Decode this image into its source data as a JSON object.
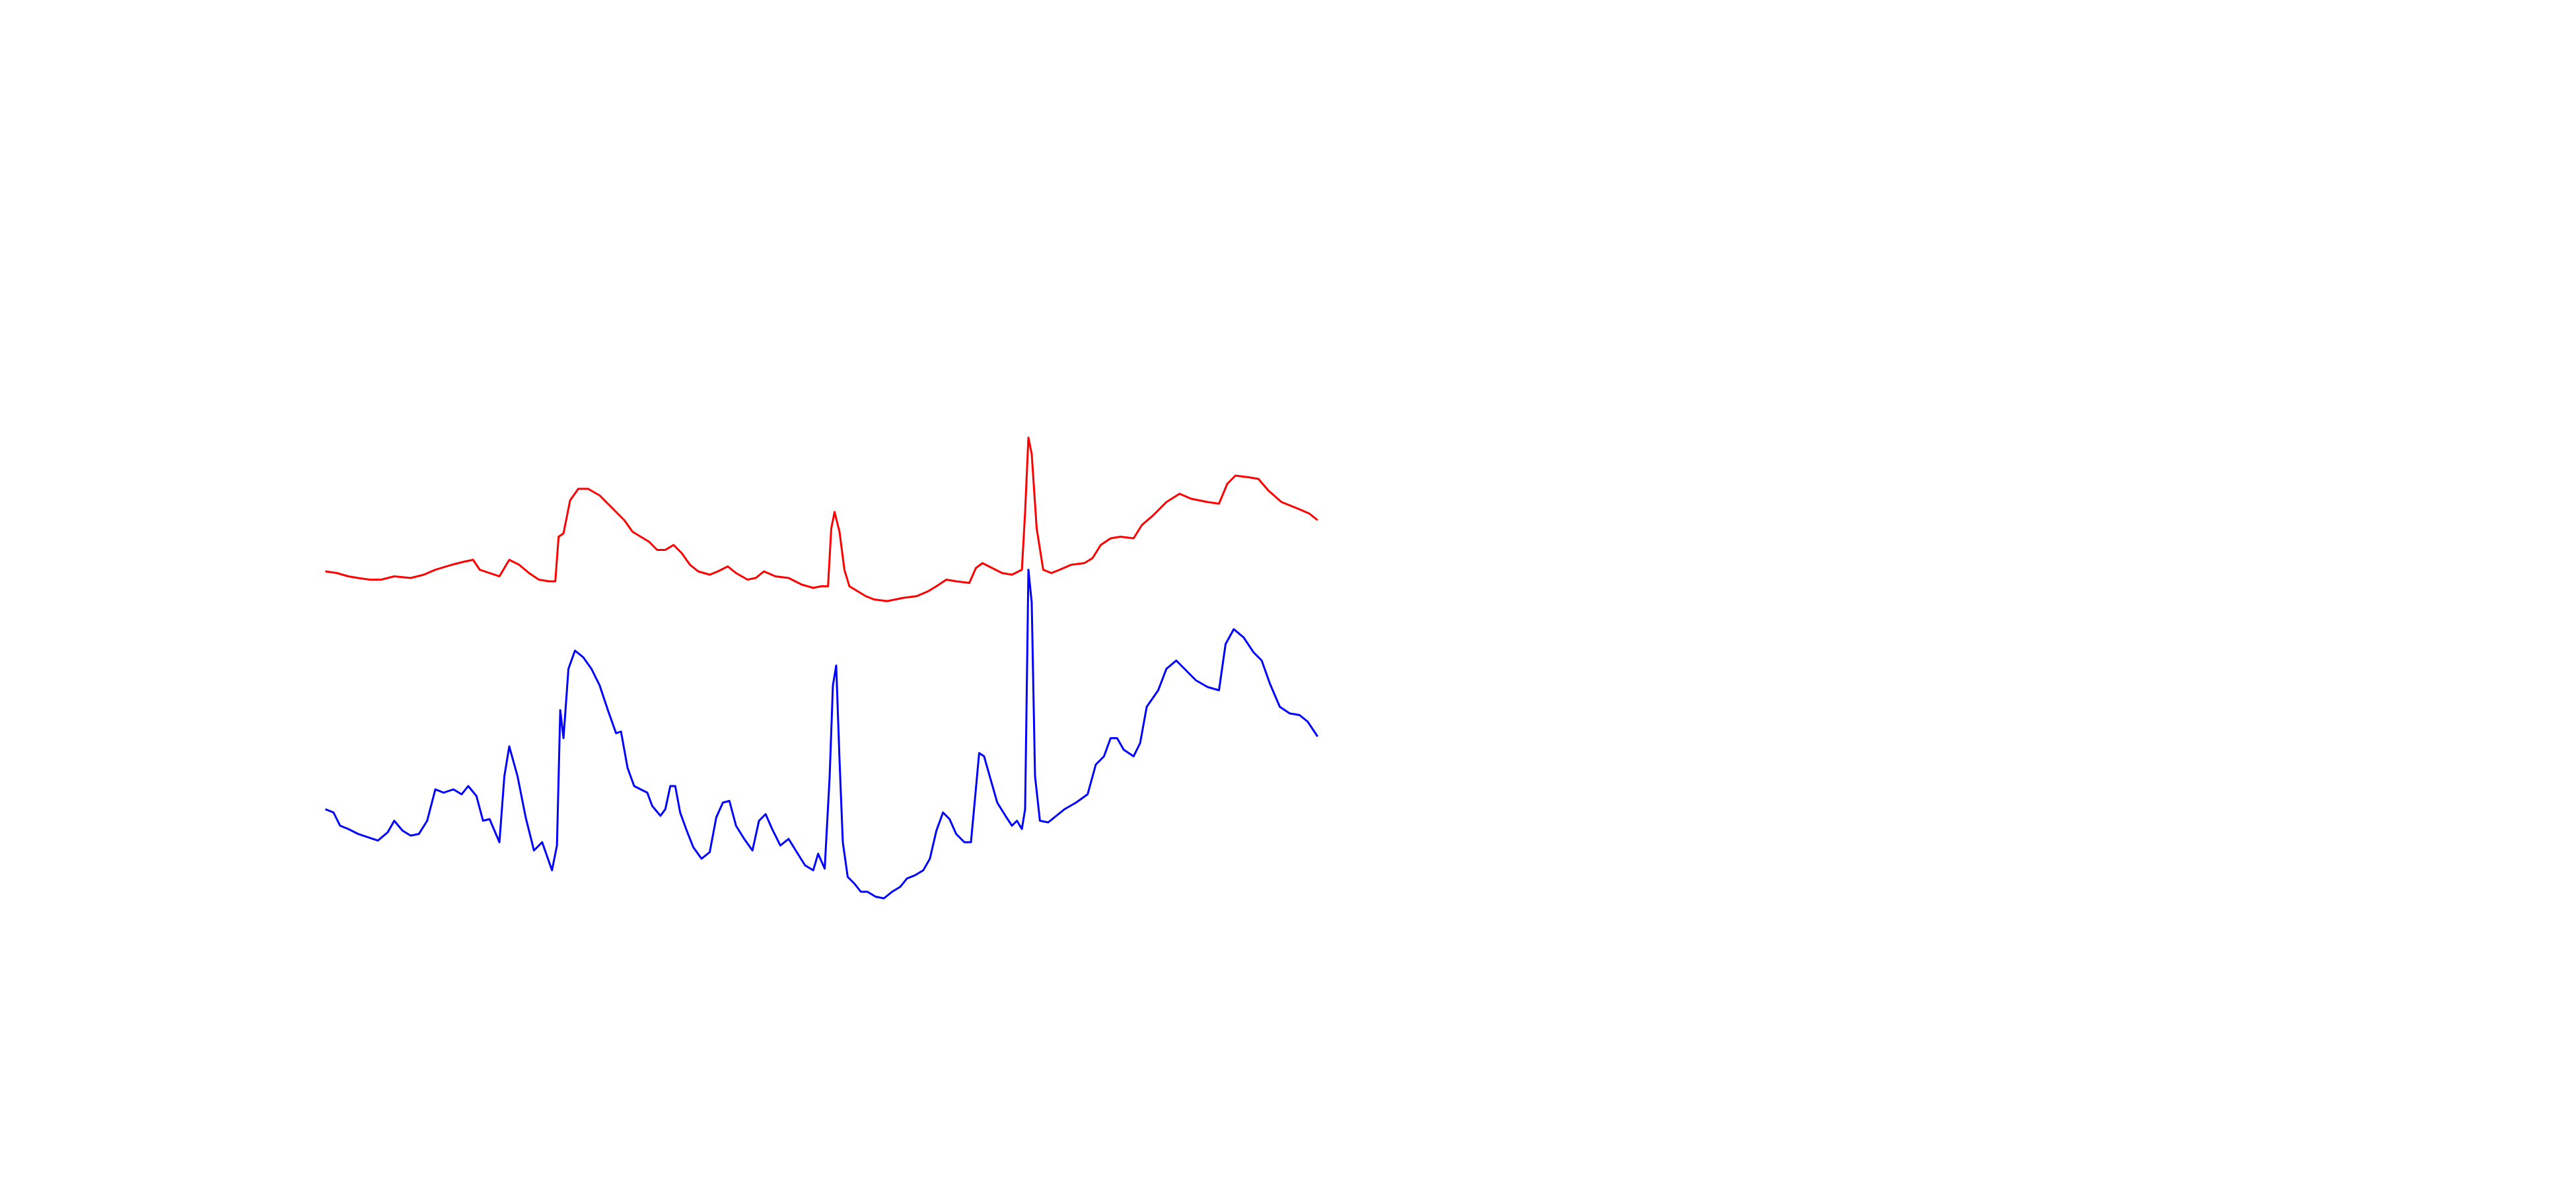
{
  "chart_data": {
    "type": "line",
    "xlim": [
      0,
      1568
    ],
    "ylim": [
      720,
      0
    ],
    "series": [
      {
        "color": "#ff0000",
        "x": [
          198,
          205,
          212,
          218,
          225,
          232,
          240,
          250,
          258,
          265,
          275,
          283,
          288,
          292,
          298,
          304,
          310,
          316,
          322,
          328,
          334,
          338,
          340,
          343,
          347,
          352,
          358,
          365,
          370,
          376,
          380,
          385,
          390,
          395,
          400,
          405,
          410,
          415,
          420,
          425,
          432,
          437,
          443,
          448,
          455,
          460,
          465,
          472,
          480,
          488,
          495,
          500,
          504,
          506,
          508,
          511,
          514,
          517,
          522,
          527,
          532,
          540,
          550,
          558,
          565,
          570,
          576,
          582,
          590,
          594,
          598,
          604,
          610,
          616,
          622,
          624,
          626,
          628,
          631,
          635,
          640,
          645,
          652,
          660,
          665,
          670,
          676,
          682,
          690,
          695,
          702,
          710,
          718,
          725,
          735,
          742,
          747,
          752,
          760,
          766,
          772,
          780,
          790,
          797,
          802
        ],
        "values": [
          346,
          347,
          349,
          350,
          351,
          351,
          349,
          350,
          348,
          345,
          342,
          340,
          339,
          345,
          347,
          349,
          339,
          342,
          347,
          351,
          352,
          352,
          325,
          323,
          303,
          296,
          296,
          300,
          305,
          311,
          315,
          322,
          325,
          328,
          333,
          333,
          330,
          335,
          342,
          346,
          348,
          346,
          343,
          347,
          351,
          350,
          346,
          349,
          350,
          354,
          356,
          355,
          355,
          320,
          310,
          322,
          345,
          355,
          358,
          361,
          363,
          364,
          362,
          361,
          358,
          355,
          351,
          352,
          353,
          344,
          341,
          344,
          347,
          348,
          345,
          310,
          265,
          275,
          320,
          345,
          347,
          345,
          342,
          341,
          338,
          330,
          326,
          325,
          326,
          318,
          312,
          304,
          299,
          302,
          304,
          305,
          293,
          288,
          289,
          290,
          297,
          304,
          308,
          311,
          315
        ]
      },
      {
        "color": "#0000ff",
        "x": [
          198,
          203,
          207,
          212,
          218,
          224,
          230,
          236,
          240,
          245,
          250,
          255,
          260,
          265,
          270,
          276,
          281,
          285,
          290,
          294,
          298,
          304,
          307,
          310,
          315,
          320,
          325,
          330,
          336,
          339,
          341,
          343,
          346,
          350,
          355,
          360,
          365,
          370,
          375,
          378,
          382,
          386,
          390,
          394,
          397,
          402,
          405,
          408,
          411,
          414,
          418,
          422,
          427,
          432,
          436,
          440,
          444,
          448,
          453,
          458,
          462,
          466,
          470,
          475,
          480,
          485,
          490,
          495,
          498,
          502,
          505,
          507,
          509,
          511,
          513,
          516,
          520,
          524,
          528,
          533,
          538,
          543,
          548,
          552,
          557,
          562,
          566,
          570,
          574,
          578,
          582,
          587,
          591,
          594,
          596,
          599,
          603,
          607,
          612,
          616,
          619,
          622,
          624,
          626,
          628,
          630,
          633,
          638,
          643,
          648,
          655,
          662,
          667,
          672,
          676,
          680,
          684,
          690,
          694,
          698,
          705,
          710,
          716,
          722,
          728,
          735,
          742,
          746,
          751,
          757,
          763,
          768,
          773,
          779,
          785,
          791,
          796,
          802
        ],
        "values": [
          490,
          492,
          500,
          502,
          505,
          507,
          509,
          504,
          497,
          503,
          506,
          505,
          497,
          478,
          480,
          478,
          481,
          476,
          482,
          497,
          496,
          510,
          470,
          452,
          470,
          495,
          515,
          510,
          527,
          512,
          430,
          447,
          405,
          394,
          398,
          405,
          415,
          430,
          444,
          443,
          465,
          476,
          478,
          480,
          488,
          494,
          490,
          476,
          476,
          492,
          503,
          513,
          520,
          516,
          495,
          486,
          485,
          500,
          508,
          515,
          497,
          493,
          502,
          512,
          508,
          516,
          524,
          527,
          517,
          526,
          470,
          415,
          403,
          460,
          510,
          531,
          535,
          540,
          540,
          543,
          544,
          540,
          537,
          532,
          530,
          527,
          520,
          503,
          492,
          496,
          505,
          510,
          510,
          478,
          456,
          458,
          472,
          486,
          494,
          500,
          497,
          502,
          490,
          345,
          365,
          470,
          497,
          498,
          494,
          490,
          486,
          481,
          463,
          458,
          447,
          447,
          454,
          458,
          450,
          428,
          418,
          405,
          400,
          406,
          412,
          416,
          418,
          390,
          381,
          386,
          395,
          400,
          414,
          428,
          432,
          433,
          437,
          446
        ]
      }
    ]
  }
}
